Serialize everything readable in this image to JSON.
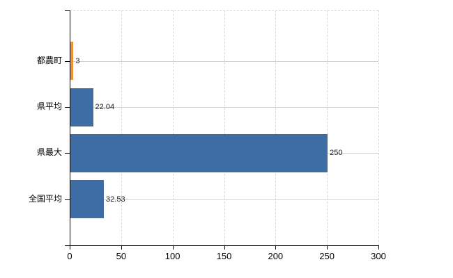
{
  "chart_data": {
    "type": "bar",
    "orientation": "horizontal",
    "title": "",
    "xlabel": "",
    "ylabel": "",
    "categories": [
      "都農町",
      "県平均",
      "県最大",
      "全国平均"
    ],
    "values": [
      3,
      22.04,
      250,
      32.53
    ],
    "value_labels": [
      "3",
      "22.04",
      "250",
      "32.53"
    ],
    "bar_colors": [
      "#ec9138",
      "#3d6da4",
      "#3d6da4",
      "#3d6da4"
    ],
    "xlim": [
      0,
      300
    ],
    "x_ticks": [
      0,
      50,
      100,
      150,
      200,
      250,
      300
    ],
    "x_tick_labels": [
      "0",
      "50",
      "100",
      "150",
      "200",
      "250",
      "300"
    ],
    "grid": true,
    "legend_position": "none"
  },
  "colors": {
    "bar_blue": "#3d6da4",
    "bar_orange": "#ec9138",
    "grid_horizontal": "#d0d4cd",
    "grid_vertical_dashed": "#dadada",
    "axis": "#000000",
    "label_text": "#000000",
    "background": "#ffffff"
  }
}
